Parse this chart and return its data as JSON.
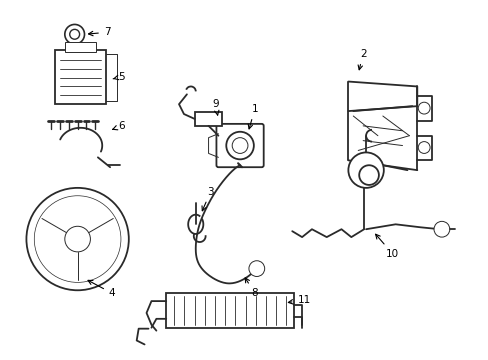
{
  "background_color": "#ffffff",
  "line_color": "#2a2a2a",
  "label_color": "#000000",
  "figsize": [
    4.89,
    3.6
  ],
  "dpi": 100,
  "label_fontsize": 7.5,
  "lw_main": 1.3,
  "lw_thin": 0.7
}
